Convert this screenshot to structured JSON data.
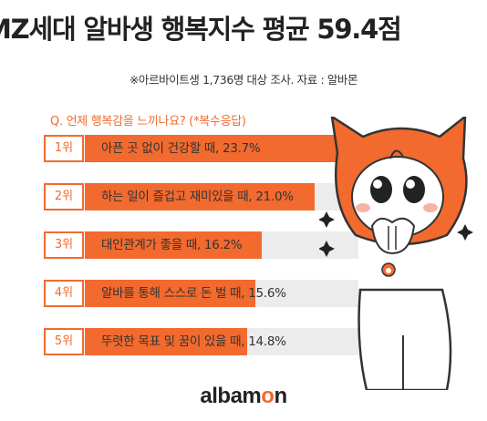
{
  "title": "MZ세대 알바생 행복지수 평균 59.4점",
  "source_note": "※아르바이트생 1,736명 대상 조사. 자료 : 알바몬",
  "colors": {
    "accent": "#f26a2e",
    "track": "#ececec"
  },
  "chart_data": {
    "type": "bar",
    "title": "Q. 언제 행복감을 느끼나요? (*복수응답)",
    "ranks": [
      "1위",
      "2위",
      "3위",
      "4위",
      "5위"
    ],
    "labels": [
      "아픈 곳 없이 건강할 때, 23.7%",
      "하는 일이 즐겁고 재미있을 때, 21.0%",
      "대인관계가 좋을 때, 16.2%",
      "알바를 통해 스스로 돈 벌 때, 15.6%",
      "뚜렷한 목표 및 꿈이 있을 때, 14.8%"
    ],
    "categories": [
      "아픈 곳 없이 건강할 때",
      "하는 일이 즐겁고 재미있을 때",
      "대인관계가 좋을 때",
      "알바를 통해 스스로 돈 벌 때",
      "뚜렷한 목표 및 꿈이 있을 때"
    ],
    "values": [
      23.7,
      21.0,
      16.2,
      15.6,
      14.8
    ],
    "unit": "%"
  },
  "logo": {
    "part1": "albam",
    "part2": "o",
    "part3": "n"
  }
}
